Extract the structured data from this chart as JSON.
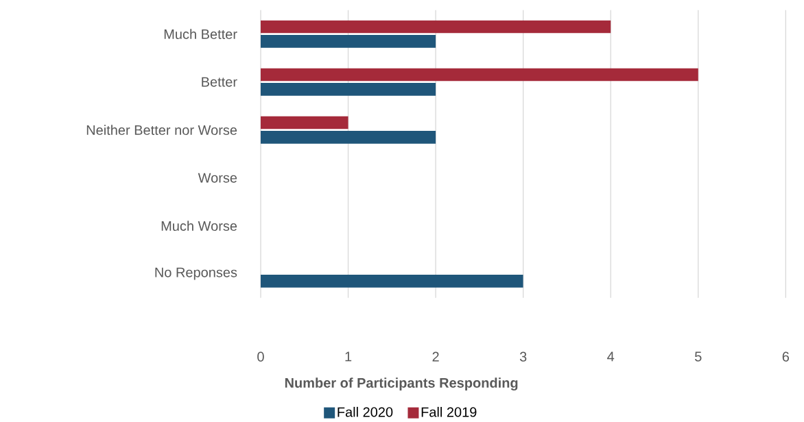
{
  "chart_data": {
    "type": "bar",
    "orientation": "horizontal",
    "xlabel": "Number of Participants Responding",
    "categories": [
      "Much Better",
      "Better",
      "Neither Better nor Worse",
      "Worse",
      "Much Worse",
      "No Reponses"
    ],
    "series": [
      {
        "name": "Fall 2020",
        "color": "#1f567a",
        "values": [
          2,
          2,
          2,
          0,
          0,
          3
        ]
      },
      {
        "name": "Fall 2019",
        "color": "#a52a3a",
        "values": [
          4,
          5,
          1,
          0,
          0,
          0
        ]
      }
    ],
    "xlim": [
      0,
      6
    ],
    "xticks": [
      0,
      1,
      2,
      3,
      4,
      5,
      6
    ],
    "grid": "x",
    "legend": "bottom"
  }
}
